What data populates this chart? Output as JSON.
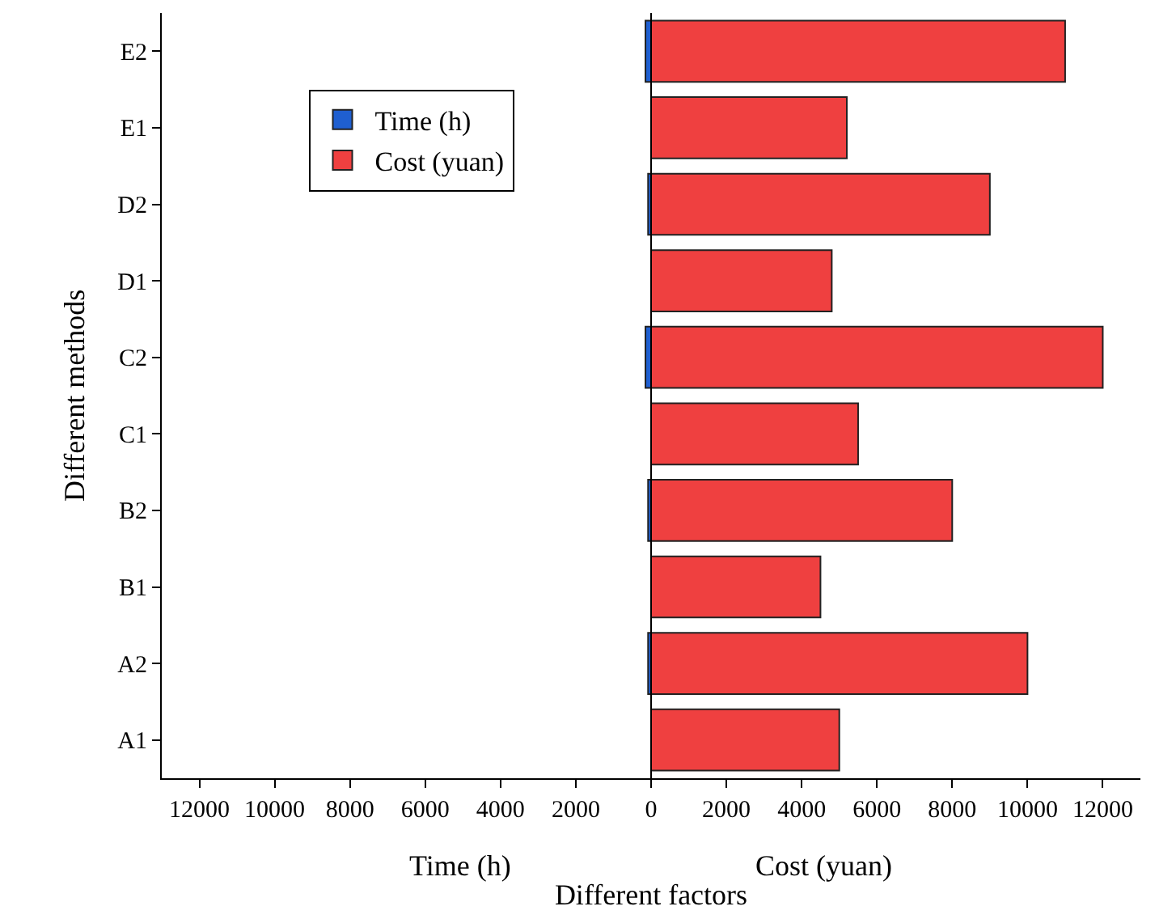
{
  "chart_data": {
    "type": "bar",
    "orientation": "horizontal",
    "categories": [
      "E2",
      "E1",
      "D2",
      "D1",
      "C2",
      "C1",
      "B2",
      "B1",
      "A2",
      "A1"
    ],
    "series": [
      {
        "name": "Time (h)",
        "color": "#1f5fd0",
        "values": [
          -150,
          null,
          -80,
          null,
          -150,
          null,
          -80,
          null,
          -80,
          null
        ]
      },
      {
        "name": "Cost (yuan)",
        "color": "#ef4040",
        "values": [
          11000,
          5200,
          9000,
          4800,
          12000,
          5500,
          8000,
          4500,
          10000,
          5000
        ]
      }
    ],
    "xlabel": "Different factors",
    "ylabel": "Different methods",
    "annotations": [
      "Time (h)",
      "Cost (yuan)"
    ],
    "xlim": [
      -13000,
      13000
    ],
    "xticks": [
      {
        "value": -12000,
        "label": "12000"
      },
      {
        "value": -10000,
        "label": "10000"
      },
      {
        "value": -8000,
        "label": "8000"
      },
      {
        "value": -6000,
        "label": "6000"
      },
      {
        "value": -4000,
        "label": "4000"
      },
      {
        "value": -2000,
        "label": "2000"
      },
      0,
      2000,
      4000,
      6000,
      8000,
      10000,
      12000
    ],
    "ref_lines": [
      {
        "axis": "x",
        "value": 0,
        "color": "#000000",
        "line_style": "solid"
      }
    ],
    "legend": "top left"
  }
}
